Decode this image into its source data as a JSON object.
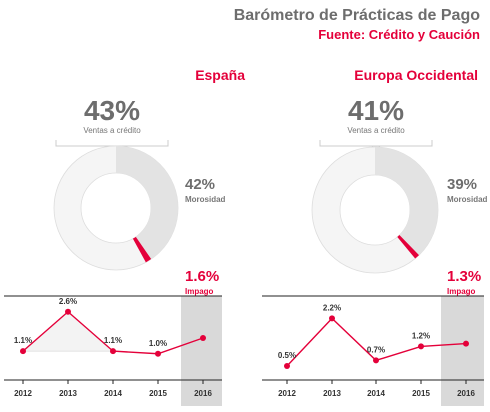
{
  "header": {
    "title": "Barómetro de Prácticas de Pago",
    "subtitle": "Fuente: Crédito y Caución"
  },
  "colors": {
    "accent": "#e4003a",
    "donut_gray": "#e3e3e3",
    "donut_light": "#f5f5f5",
    "shade": "#d9d9d9",
    "title_gray": "#6d6d6d",
    "label_gray": "#777777"
  },
  "chart_data": [
    {
      "region": "España",
      "type": "pie",
      "sales_on_credit": {
        "value": "43%",
        "label": "Ventas a crédito",
        "percent": 43
      },
      "late_payment": {
        "value": "42%",
        "label": "Morosidad",
        "percent": 42
      },
      "non_payment": {
        "value": "1.6%",
        "label": "Impago",
        "percent": 1.6
      },
      "line": {
        "type": "line",
        "x": [
          "2012",
          "2013",
          "2014",
          "2015",
          "2016"
        ],
        "y": [
          1.1,
          2.6,
          1.1,
          1.0,
          1.6
        ],
        "data_labels": [
          "1.1%",
          "2.6%",
          "1.1%",
          "1.0%",
          ""
        ],
        "highlighted_category": "2016",
        "ylim": [
          0,
          3.2
        ]
      }
    },
    {
      "region": "Europa Occidental",
      "type": "pie",
      "sales_on_credit": {
        "value": "41%",
        "label": "Ventas a crédito",
        "percent": 41
      },
      "late_payment": {
        "value": "39%",
        "label": "Morosidad",
        "percent": 39
      },
      "non_payment": {
        "value": "1.3%",
        "label": "Impago",
        "percent": 1.3
      },
      "line": {
        "type": "line",
        "x": [
          "2012",
          "2013",
          "2014",
          "2015",
          "2016"
        ],
        "y": [
          0.5,
          2.2,
          0.7,
          1.2,
          1.3
        ],
        "data_labels": [
          "0.5%",
          "2.2%",
          "0.7%",
          "1.2%",
          ""
        ],
        "highlighted_category": "2016",
        "ylim": [
          0,
          3.0
        ]
      }
    }
  ]
}
